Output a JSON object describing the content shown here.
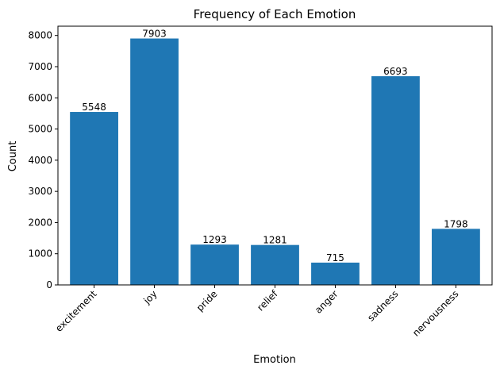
{
  "chart_data": {
    "type": "bar",
    "title": "Frequency of Each Emotion",
    "xlabel": "Emotion",
    "ylabel": "Count",
    "categories": [
      "excitement",
      "joy",
      "pride",
      "relief",
      "anger",
      "sadness",
      "nervousness"
    ],
    "values": [
      5548,
      7903,
      1293,
      1281,
      715,
      6693,
      1798
    ],
    "data_labels": [
      "5548",
      "7903",
      "1293",
      "1281",
      "715",
      "6693",
      "1798"
    ],
    "ylim": [
      0,
      8298
    ],
    "yticks": [
      0,
      1000,
      2000,
      3000,
      4000,
      5000,
      6000,
      7000,
      8000
    ],
    "ytick_labels": [
      "0",
      "1000",
      "2000",
      "3000",
      "4000",
      "5000",
      "6000",
      "7000",
      "8000"
    ],
    "x_tick_rotation_deg": 45,
    "grid": false,
    "bar_color": "#1f77b4"
  }
}
